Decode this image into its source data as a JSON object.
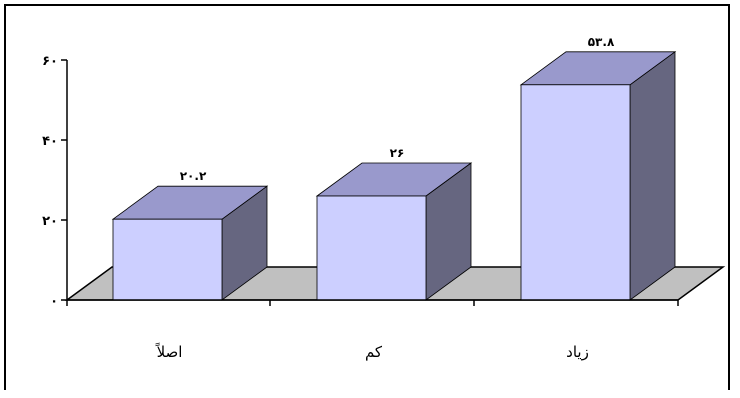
{
  "chart_data": {
    "type": "bar",
    "categories": [
      "اصلاً",
      "کم",
      "زیاد"
    ],
    "values": [
      20.2,
      26,
      53.8
    ],
    "value_labels": [
      "۲۰.۲",
      "۲۶",
      "۵۳.۸"
    ],
    "y_ticks": [
      0,
      20,
      40,
      60
    ],
    "y_tick_labels": [
      "۰",
      "۲۰",
      "۴۰",
      "۶۰"
    ],
    "ylim": [
      0,
      60
    ],
    "grid": false,
    "legend": "none",
    "colors": {
      "bar_front": "#cccfff",
      "bar_top": "#9999cc",
      "bar_side": "#666680",
      "floor": "#c0c0c0"
    }
  }
}
